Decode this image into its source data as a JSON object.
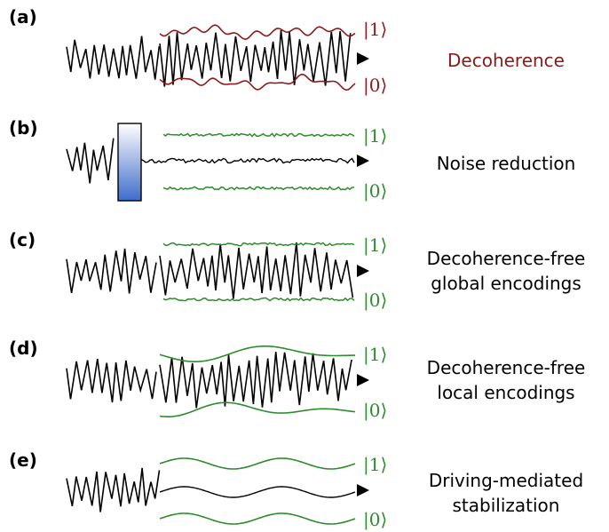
{
  "colors": {
    "decoherence": "#8b1a1a",
    "protected": "#2e8b2e",
    "signal": "#000000",
    "filter_top": "#ffffff",
    "filter_bottom": "#3f6cc9"
  },
  "panels": [
    {
      "label": "(a)",
      "title_lines": [
        "Decoherence"
      ],
      "ket_one": "|1⟩",
      "ket_zero": "|0⟩",
      "accent": "decoherence",
      "after_signal": "noisy",
      "levels": "noisy",
      "filter": false
    },
    {
      "label": "(b)",
      "title_lines": [
        "Noise reduction"
      ],
      "ket_one": "|1⟩",
      "ket_zero": "|0⟩",
      "accent": "protected",
      "after_signal": "small-noise",
      "levels": "small-noise",
      "filter": true
    },
    {
      "label": "(c)",
      "title_lines": [
        "Decoherence-free",
        "global encodings"
      ],
      "ket_one": "|1⟩",
      "ket_zero": "|0⟩",
      "accent": "protected",
      "after_signal": "noisy",
      "levels": "small-noise",
      "filter": false
    },
    {
      "label": "(d)",
      "title_lines": [
        "Decoherence-free",
        "local encodings"
      ],
      "ket_one": "|1⟩",
      "ket_zero": "|0⟩",
      "accent": "protected",
      "after_signal": "noisy",
      "levels": "smooth-wave",
      "filter": false
    },
    {
      "label": "(e)",
      "title_lines": [
        "Driving-mediated",
        "stabilization"
      ],
      "ket_one": "|1⟩",
      "ket_zero": "|0⟩",
      "accent": "protected",
      "after_signal": "periodic",
      "levels": "periodic",
      "filter": false
    }
  ]
}
